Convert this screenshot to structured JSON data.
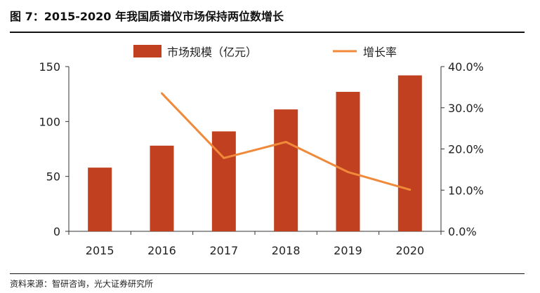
{
  "figure": {
    "title": "图 7：2015-2020 年我国质谱仪市场保持两位数增长",
    "source": "资料来源：智研咨询，光大证券研究所"
  },
  "chart_data": {
    "type": "bar",
    "categories": [
      "2015",
      "2016",
      "2017",
      "2018",
      "2019",
      "2020"
    ],
    "series": [
      {
        "name": "市场规模（亿元）",
        "type": "bar",
        "axis": "left",
        "values": [
          58,
          78,
          91,
          111,
          127,
          142
        ],
        "color": "#C0401F"
      },
      {
        "name": "增长率",
        "type": "line",
        "axis": "right",
        "values": [
          null,
          33.5,
          17.8,
          21.7,
          14.4,
          10.1
        ],
        "color": "#F08A3A"
      }
    ],
    "y_left": {
      "range": [
        0,
        150
      ],
      "ticks": [
        "0",
        "50",
        "100",
        "150"
      ]
    },
    "y_right": {
      "range": [
        0,
        40
      ],
      "ticks": [
        "0.0%",
        "10.0%",
        "20.0%",
        "30.0%",
        "40.0%"
      ]
    },
    "grid": false,
    "legend_position": "top"
  }
}
